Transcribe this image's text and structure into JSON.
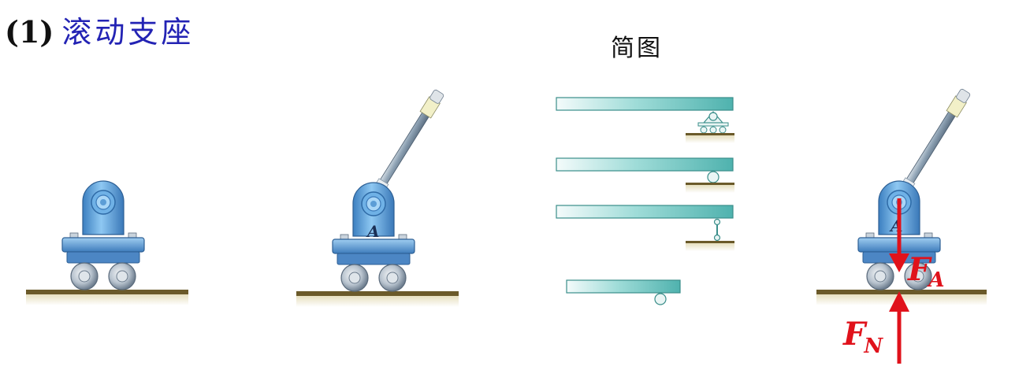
{
  "title": {
    "number": "(1)",
    "text": "滚动支座"
  },
  "diagram_label": "简图",
  "support_mark": "A",
  "forces": {
    "applied": {
      "letter": "F",
      "subscript": "A"
    },
    "normal": {
      "letter": "F",
      "subscript": "N"
    }
  },
  "colors": {
    "title_text": "#2323b4",
    "beam": "#7fd0cc",
    "ground": "#d8cfa8",
    "support_blue": "#5fa8de",
    "force_arrow": "#e0121b"
  }
}
